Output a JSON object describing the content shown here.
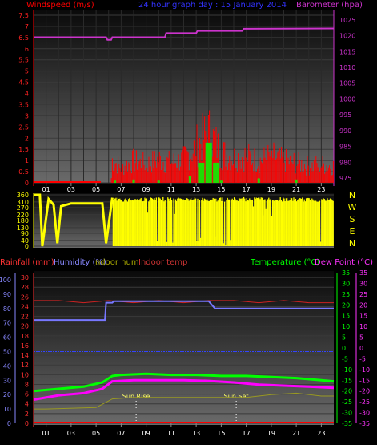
{
  "chart_data": [
    {
      "type": "line",
      "title": "24 hour graph day : 15 January 2014",
      "left_axis_label": "Windspeed (m/s)",
      "right_axis_label": "Barometer (hpa)",
      "x_tick_labels": [
        "01",
        "03",
        "05",
        "07",
        "09",
        "11",
        "13",
        "15",
        "17",
        "19",
        "21",
        "23"
      ],
      "x_range": [
        0,
        24
      ],
      "left_ticks": [
        "0",
        "0.5",
        "1",
        "1.5",
        "2",
        "2.5",
        "3",
        "3.5",
        "4",
        "4.5",
        "5",
        "5.5",
        "6",
        "6.5",
        "7",
        "7.5"
      ],
      "left_range": [
        0,
        7.5
      ],
      "right_ticks": [
        "975",
        "980",
        "985",
        "990",
        "995",
        "1000",
        "1005",
        "1010",
        "1015",
        "1020",
        "1025"
      ],
      "right_range": [
        973.5,
        1028
      ],
      "grid": true,
      "series": [
        {
          "name": "Barometer",
          "axis": "right",
          "color": "#cc33cc",
          "points": [
            [
              0,
              1019.5
            ],
            [
              5.8,
              1019.5
            ],
            [
              5.9,
              1018.7
            ],
            [
              6.2,
              1018.7
            ],
            [
              6.3,
              1019.5
            ],
            [
              10.5,
              1019.5
            ],
            [
              10.6,
              1020.8
            ],
            [
              13,
              1020.8
            ],
            [
              13.1,
              1021.5
            ],
            [
              16.7,
              1021.5
            ],
            [
              16.8,
              1022.2
            ],
            [
              24,
              1022.3
            ]
          ]
        },
        {
          "name": "Windspeed",
          "axis": "left",
          "color": "#ff0000",
          "style": "dense-bars",
          "points": [
            [
              0,
              0
            ],
            [
              6.2,
              0
            ],
            [
              6.3,
              1.4
            ],
            [
              7,
              0.9
            ],
            [
              8,
              1.3
            ],
            [
              9,
              1.1
            ],
            [
              10,
              1.4
            ],
            [
              11,
              1.2
            ],
            [
              12,
              1.4
            ],
            [
              13,
              2.2
            ],
            [
              14,
              3.0
            ],
            [
              15,
              1.8
            ],
            [
              16,
              1.5
            ],
            [
              17,
              1.6
            ],
            [
              18,
              1.3
            ],
            [
              19,
              1.6
            ],
            [
              20,
              1.3
            ],
            [
              21,
              1.2
            ],
            [
              22,
              1.0
            ],
            [
              23,
              1.1
            ],
            [
              24,
              1.0
            ]
          ]
        },
        {
          "name": "Wind gust",
          "axis": "left",
          "color": "#00ff00",
          "points": [
            [
              6.5,
              0.1
            ],
            [
              8,
              0.15
            ],
            [
              10,
              0.1
            ],
            [
              12.5,
              0.3
            ],
            [
              13.4,
              0.9
            ],
            [
              14,
              1.8
            ],
            [
              14.6,
              0.9
            ],
            [
              15,
              0.1
            ],
            [
              18,
              0.2
            ],
            [
              21,
              0.15
            ]
          ]
        }
      ]
    },
    {
      "type": "line",
      "right_compass_labels": [
        "N",
        "W",
        "S",
        "E",
        "N"
      ],
      "x_range": [
        0,
        24
      ],
      "left_ticks": [
        "0",
        "40",
        "90",
        "130",
        "180",
        "220",
        "270",
        "310",
        "360"
      ],
      "left_range": [
        0,
        360
      ],
      "series": [
        {
          "name": "Wind direction",
          "color": "#ffff00",
          "style": "dense-bars",
          "points": [
            [
              0,
              360
            ],
            [
              0.5,
              360
            ],
            [
              0.7,
              0
            ],
            [
              1.2,
              330
            ],
            [
              1.6,
              290
            ],
            [
              1.9,
              20
            ],
            [
              2.2,
              280
            ],
            [
              3,
              300
            ],
            [
              5.5,
              300
            ],
            [
              5.8,
              20
            ],
            [
              6.3,
              340
            ],
            [
              12,
              345
            ],
            [
              14,
              340
            ],
            [
              18,
              345
            ],
            [
              22,
              340
            ],
            [
              24,
              340
            ]
          ]
        }
      ]
    },
    {
      "type": "line",
      "labels": {
        "rainfall": "Rainfall (mm)",
        "humidity": "Humidity (%)",
        "indoor_hum": "Indoor hum",
        "indoor_temp": "Indoor temp",
        "temperature": "Temperature (°C)",
        "dew_point": "Dew Point (°C)",
        "sun_rise": "Sun Rise",
        "sun_set": "Sun Set"
      },
      "x_tick_labels": [
        "01",
        "03",
        "05",
        "07",
        "09",
        "11",
        "13",
        "15",
        "17",
        "19",
        "21",
        "23"
      ],
      "x_range": [
        0,
        24
      ],
      "humidity_ticks": [
        "0",
        "10",
        "20",
        "30",
        "40",
        "50",
        "60",
        "70",
        "80",
        "90",
        "100"
      ],
      "humidity_range": [
        0,
        105
      ],
      "rain_ticks": [
        "0",
        "2",
        "4",
        "6",
        "8",
        "10",
        "12",
        "14",
        "16",
        "18",
        "20",
        "22",
        "24",
        "26",
        "28",
        "30"
      ],
      "rain_range": [
        0,
        31
      ],
      "temp_ticks_right1": [
        "35",
        "30",
        "25",
        "20",
        "15",
        "10",
        "5",
        "0",
        "-5",
        "-10",
        "-15",
        "-20",
        "-25",
        "-30",
        "-35"
      ],
      "temp_ticks_right2": [
        "35",
        "30",
        "25",
        "20",
        "15",
        "10",
        "5",
        "0",
        "-5",
        "-10",
        "-15",
        "-20",
        "-25",
        "-30",
        "-35"
      ],
      "temp_range": [
        -35,
        35
      ],
      "blue_reference_line_humidity": 50,
      "sun_rise_hour": 8.2,
      "sun_set_hour": 16.2,
      "series": [
        {
          "name": "Humidity",
          "color": "#7777ff",
          "points": [
            [
              0,
              72
            ],
            [
              5.7,
              72
            ],
            [
              5.8,
              84
            ],
            [
              6.3,
              84
            ],
            [
              6.4,
              85
            ],
            [
              14,
              85
            ],
            [
              14.5,
              80
            ],
            [
              24,
              80
            ]
          ]
        },
        {
          "name": "Indoor temp",
          "color": "#cc2222",
          "points": [
            [
              0,
              22
            ],
            [
              2,
              22
            ],
            [
              4,
              21
            ],
            [
              6,
              22
            ],
            [
              8,
              21
            ],
            [
              10,
              22
            ],
            [
              12,
              21
            ],
            [
              14,
              22
            ],
            [
              16,
              22
            ],
            [
              18,
              21
            ],
            [
              20,
              22
            ],
            [
              22,
              21
            ],
            [
              24,
              21
            ]
          ]
        },
        {
          "name": "Temperature",
          "color": "#00ff00",
          "points": [
            [
              0,
              -20
            ],
            [
              2,
              -19
            ],
            [
              4,
              -18
            ],
            [
              5.5,
              -16
            ],
            [
              6.3,
              -13
            ],
            [
              7,
              -12.5
            ],
            [
              9,
              -12
            ],
            [
              11,
              -12.5
            ],
            [
              13,
              -12.5
            ],
            [
              15,
              -13
            ],
            [
              17,
              -13
            ],
            [
              19,
              -13.5
            ],
            [
              21,
              -14
            ],
            [
              23,
              -15
            ],
            [
              24,
              -15.5
            ]
          ]
        },
        {
          "name": "Dew Point",
          "color": "#ff00ff",
          "points": [
            [
              0,
              -24
            ],
            [
              2,
              -22
            ],
            [
              4,
              -21
            ],
            [
              5.5,
              -19
            ],
            [
              6.3,
              -15.5
            ],
            [
              8,
              -15
            ],
            [
              10,
              -15
            ],
            [
              12,
              -15
            ],
            [
              14,
              -15.3
            ],
            [
              16,
              -16
            ],
            [
              18,
              -17
            ],
            [
              20,
              -17.5
            ],
            [
              22,
              -18
            ],
            [
              24,
              -18.5
            ]
          ]
        },
        {
          "name": "Indoor hum",
          "color": "#999922",
          "points": [
            [
              0,
              10
            ],
            [
              1,
              10
            ],
            [
              5,
              11
            ],
            [
              6.3,
              17
            ],
            [
              8,
              18
            ],
            [
              10,
              18
            ],
            [
              13,
              18
            ],
            [
              15,
              18
            ],
            [
              17,
              18
            ],
            [
              19,
              20
            ],
            [
              21,
              21
            ],
            [
              23,
              19
            ],
            [
              24,
              19
            ]
          ]
        }
      ]
    }
  ]
}
